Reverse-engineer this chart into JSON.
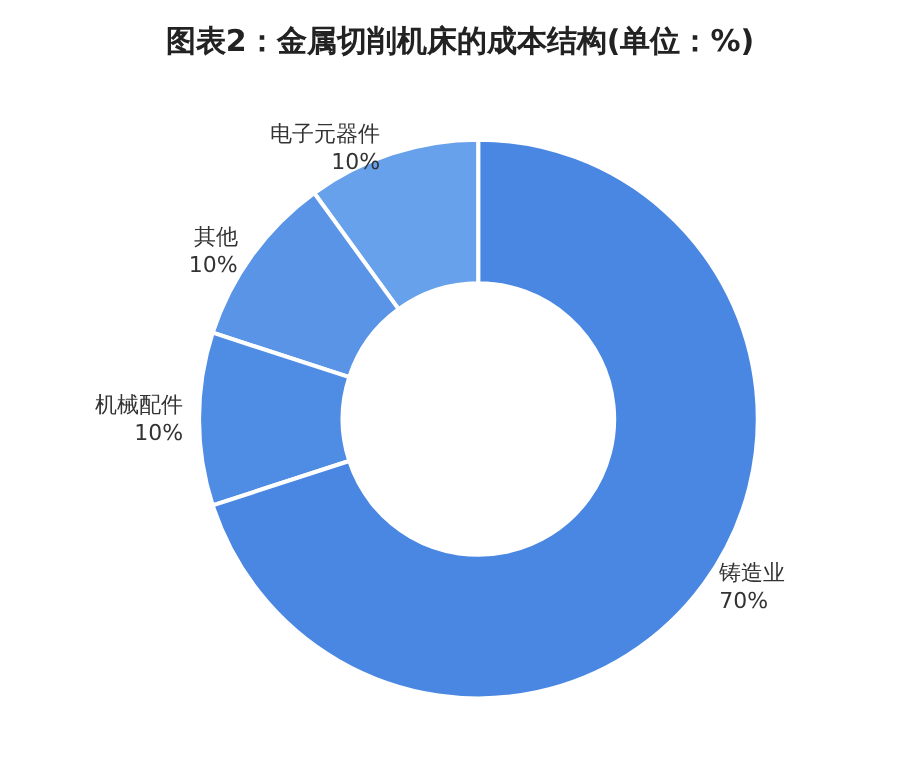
{
  "chart_data": {
    "type": "donut",
    "title": "图表2：金属切削机床的成本结构(单位：%)",
    "categories": [
      "电子元器件",
      "其他",
      "机械配件",
      "铸造业"
    ],
    "values": [
      10,
      10,
      10,
      70
    ],
    "colors": [
      "#67a0eb",
      "#5994e7",
      "#4f8ce4",
      "#4a87e2"
    ],
    "value_labels": [
      "10%",
      "10%",
      "10%",
      "70%"
    ],
    "legend": false
  }
}
